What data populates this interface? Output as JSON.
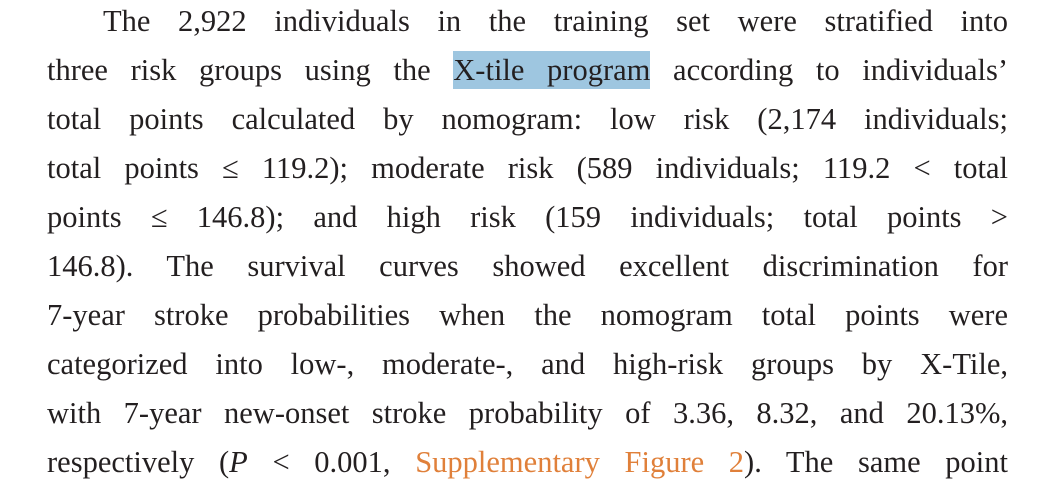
{
  "paragraph": {
    "lines": [
      [
        "The 2,922 individuals in the training set were stratified into"
      ],
      [
        "three risk groups using the ",
        "X-tile program",
        " according to individuals’"
      ],
      [
        "total points calculated by nomogram: low risk (2,174 individuals;"
      ],
      [
        "total points ≤ 119.2); moderate risk (589 individuals; 119.2 < total"
      ],
      [
        "points ≤ 146.8); and high risk (159 individuals; total points >"
      ],
      [
        "146.8). The survival curves showed excellent discrimination for"
      ],
      [
        "7-year stroke probabilities when the nomogram total points were"
      ],
      [
        "categorized into low-, moderate-, and high-risk groups by X-Tile,"
      ],
      [
        "with 7-year new-onset stroke probability of 3.36, 8.32, and 20.13%,"
      ],
      [
        "respectively (",
        "P",
        " < 0.001, ",
        "Supplementary Figure 2",
        "). The same point"
      ]
    ]
  }
}
